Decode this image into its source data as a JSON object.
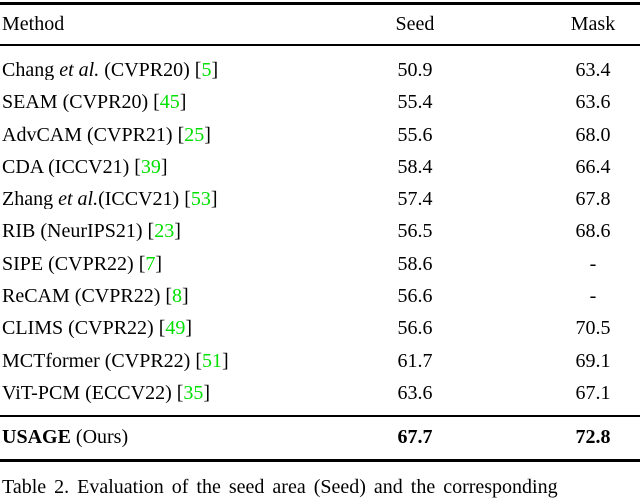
{
  "table": {
    "headers": [
      "Method",
      "Seed",
      "Mask"
    ],
    "citation_color": "#00e000",
    "text_color": "#000000",
    "background_color": "#ffffff",
    "rows": [
      {
        "pre": "Chang ",
        "emph": "et al.",
        "post": " (CVPR20) [",
        "cite": "5",
        "end": "]",
        "seed": "50.9",
        "mask": "63.4"
      },
      {
        "pre": "SEAM (CVPR20) [",
        "emph": "",
        "post": "",
        "cite": "45",
        "end": "]",
        "seed": "55.4",
        "mask": "63.6"
      },
      {
        "pre": "AdvCAM (CVPR21) [",
        "emph": "",
        "post": "",
        "cite": "25",
        "end": "]",
        "seed": "55.6",
        "mask": "68.0"
      },
      {
        "pre": "CDA (ICCV21) [",
        "emph": "",
        "post": "",
        "cite": "39",
        "end": "]",
        "seed": "58.4",
        "mask": "66.4"
      },
      {
        "pre": "Zhang ",
        "emph": "et al.",
        "post": "(ICCV21) [",
        "cite": "53",
        "end": "]",
        "seed": "57.4",
        "mask": "67.8"
      },
      {
        "pre": "RIB (NeurIPS21) [",
        "emph": "",
        "post": "",
        "cite": "23",
        "end": "]",
        "seed": "56.5",
        "mask": "68.6"
      },
      {
        "pre": "SIPE (CVPR22) [",
        "emph": "",
        "post": "",
        "cite": "7",
        "end": "]",
        "seed": "58.6",
        "mask": "-"
      },
      {
        "pre": "ReCAM (CVPR22) [",
        "emph": "",
        "post": "",
        "cite": "8",
        "end": "]",
        "seed": "56.6",
        "mask": "-"
      },
      {
        "pre": "CLIMS (CVPR22) [",
        "emph": "",
        "post": "",
        "cite": "49",
        "end": "]",
        "seed": "56.6",
        "mask": "70.5"
      },
      {
        "pre": "MCTformer (CVPR22) [",
        "emph": "",
        "post": "",
        "cite": "51",
        "end": "]",
        "seed": "61.7",
        "mask": "69.1"
      },
      {
        "pre": "ViT-PCM (ECCV22) [",
        "emph": "",
        "post": "",
        "cite": "35",
        "end": "]",
        "seed": "63.6",
        "mask": "67.1"
      }
    ],
    "ours": {
      "name": "USAGE",
      "suffix": " (Ours)",
      "seed": "67.7",
      "mask": "72.8"
    }
  },
  "caption": {
    "text": "Table 2. Evaluation of the seed area (Seed) and the corresponding"
  }
}
